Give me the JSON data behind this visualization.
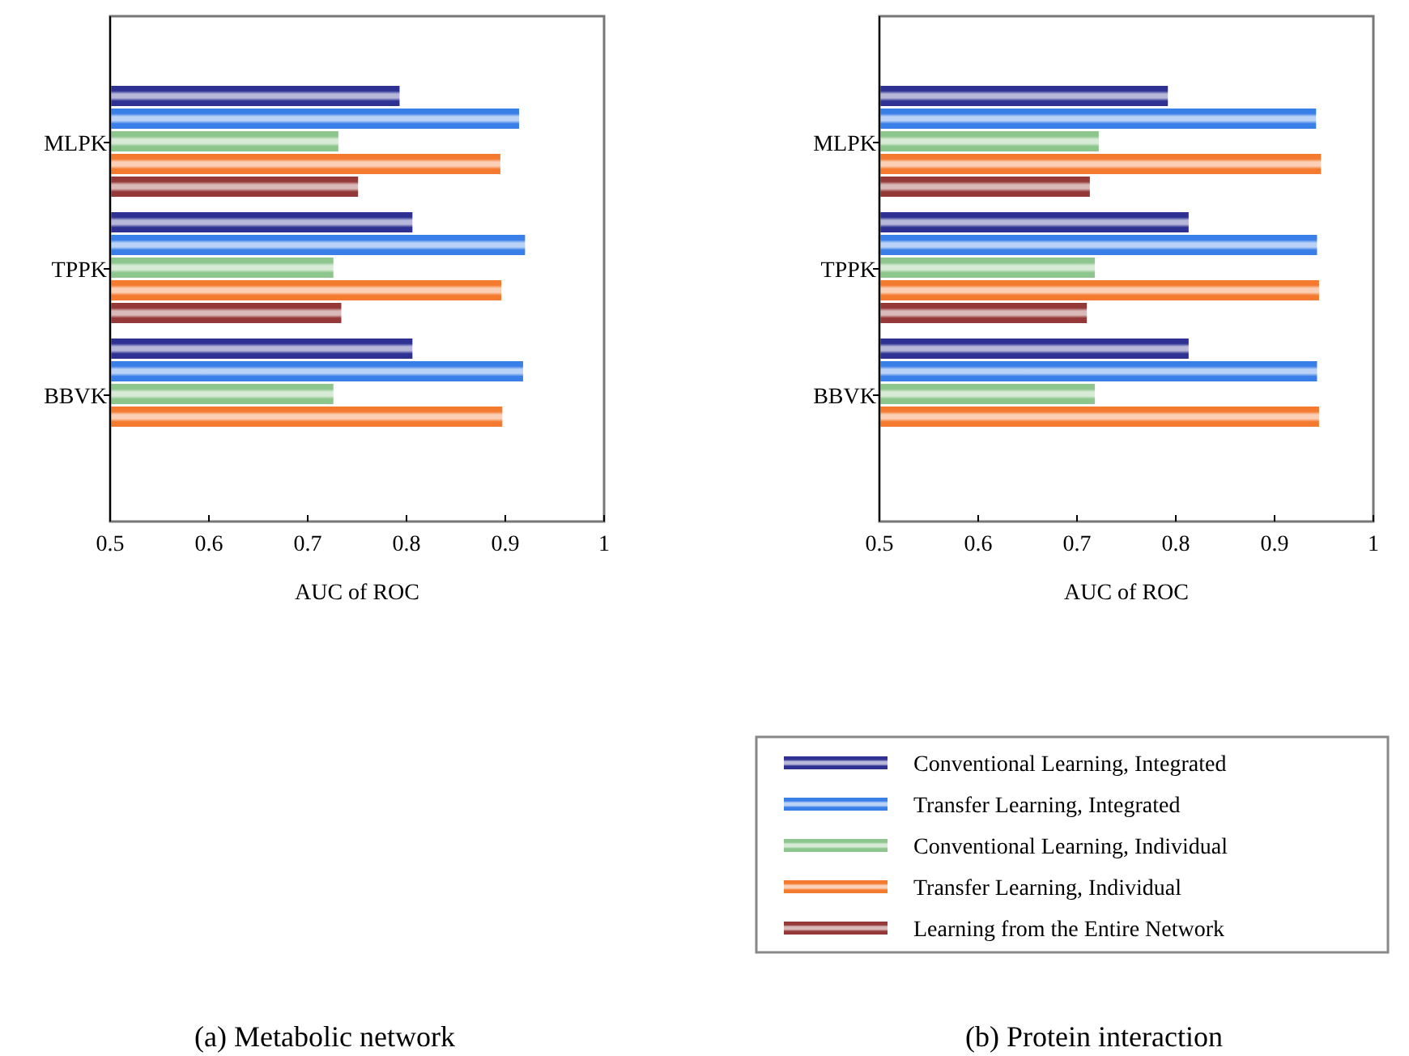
{
  "chart_data": [
    {
      "type": "bar",
      "orientation": "horizontal",
      "title": "(a) Metabolic network",
      "xlabel": "AUC of ROC",
      "categories": [
        "MLPK",
        "TPPK",
        "BBVK"
      ],
      "xlim": [
        0.5,
        1
      ],
      "xticks": [
        0.5,
        0.6,
        0.7,
        0.8,
        0.9,
        1
      ],
      "grid": false,
      "legend": false,
      "series": [
        {
          "color": "#2e3192",
          "values": [
            0.793,
            0.806,
            0.806
          ]
        },
        {
          "color": "#3a7fe8",
          "values": [
            0.914,
            0.92,
            0.918
          ]
        },
        {
          "color": "#8cc68c",
          "values": [
            0.731,
            0.726,
            0.726
          ]
        },
        {
          "color": "#f47a30",
          "values": [
            0.895,
            0.896,
            0.897
          ]
        },
        {
          "color": "#943838",
          "values": [
            0.751,
            0.734,
            null
          ]
        }
      ]
    },
    {
      "type": "bar",
      "orientation": "horizontal",
      "title": "(b) Protein interaction",
      "xlabel": "AUC of ROC",
      "categories": [
        "MLPK",
        "TPPK",
        "BBVK"
      ],
      "xlim": [
        0.5,
        1
      ],
      "xticks": [
        0.5,
        0.6,
        0.7,
        0.8,
        0.9,
        1
      ],
      "grid": false,
      "legend": "bottom",
      "series": [
        {
          "name": "Conventional Learning, Integrated",
          "color": "#2e3192",
          "values": [
            0.792,
            0.813,
            0.813
          ]
        },
        {
          "name": "Transfer Learning, Integrated",
          "color": "#3a7fe8",
          "values": [
            0.942,
            0.943,
            0.943
          ]
        },
        {
          "name": "Conventional Learning, Individual",
          "color": "#8cc68c",
          "values": [
            0.722,
            0.718,
            0.718
          ]
        },
        {
          "name": "Transfer Learning, Individual",
          "color": "#f47a30",
          "values": [
            0.947,
            0.945,
            0.945
          ]
        },
        {
          "name": "Learning from the Entire Network",
          "color": "#943838",
          "values": [
            0.713,
            0.71,
            null
          ]
        }
      ]
    }
  ]
}
